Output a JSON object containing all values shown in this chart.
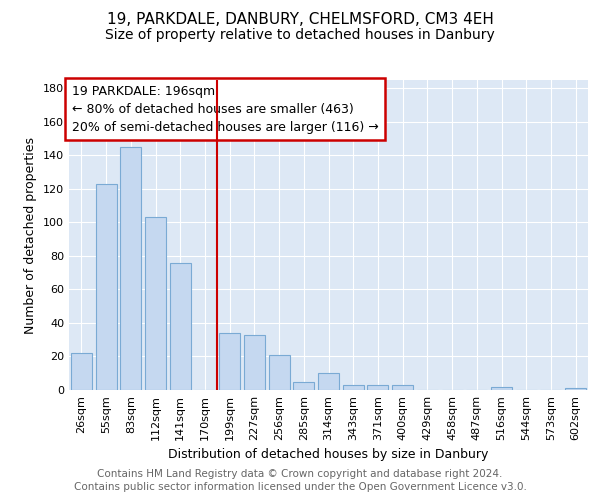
{
  "title": "19, PARKDALE, DANBURY, CHELMSFORD, CM3 4EH",
  "subtitle": "Size of property relative to detached houses in Danbury",
  "xlabel": "Distribution of detached houses by size in Danbury",
  "ylabel": "Number of detached properties",
  "categories": [
    "26sqm",
    "55sqm",
    "83sqm",
    "112sqm",
    "141sqm",
    "170sqm",
    "199sqm",
    "227sqm",
    "256sqm",
    "285sqm",
    "314sqm",
    "343sqm",
    "371sqm",
    "400sqm",
    "429sqm",
    "458sqm",
    "487sqm",
    "516sqm",
    "544sqm",
    "573sqm",
    "602sqm"
  ],
  "values": [
    22,
    123,
    145,
    103,
    76,
    0,
    34,
    33,
    21,
    5,
    10,
    3,
    3,
    3,
    0,
    0,
    0,
    2,
    0,
    0,
    1
  ],
  "bar_color": "#c5d8f0",
  "bar_edge_color": "#7aaad4",
  "vline_color": "#cc0000",
  "vline_x": 5.5,
  "annotation_line1": "19 PARKDALE: 196sqm",
  "annotation_line2": "← 80% of detached houses are smaller (463)",
  "annotation_line3": "20% of semi-detached houses are larger (116) →",
  "annotation_box_facecolor": "#ffffff",
  "annotation_box_edgecolor": "#cc0000",
  "plot_bg_color": "#dde8f5",
  "fig_bg_color": "#ffffff",
  "ylim": [
    0,
    185
  ],
  "yticks": [
    0,
    20,
    40,
    60,
    80,
    100,
    120,
    140,
    160,
    180
  ],
  "footer1": "Contains HM Land Registry data © Crown copyright and database right 2024.",
  "footer2": "Contains public sector information licensed under the Open Government Licence v3.0.",
  "title_fontsize": 11,
  "subtitle_fontsize": 10,
  "xlabel_fontsize": 9,
  "ylabel_fontsize": 9,
  "tick_fontsize": 8,
  "footer_fontsize": 7.5,
  "annotation_fontsize": 9
}
